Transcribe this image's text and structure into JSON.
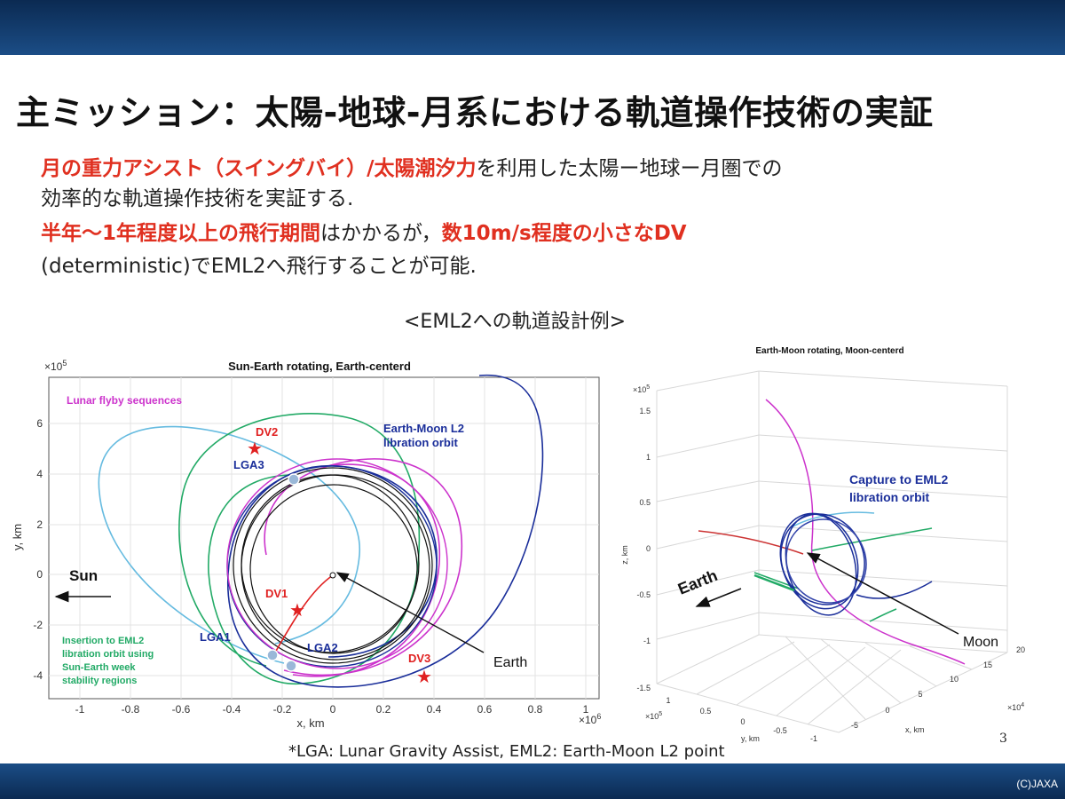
{
  "slide": {
    "title": "主ミッション：太陽-地球-月系における軌道操作技術の実証",
    "para1_hl": "月の重力アシスト（スイングバイ）/太陽潮汐力",
    "para1_rest": "を利用した太陽ー地球ー月圏での",
    "para2": "効率的な軌道操作技術を実証する.",
    "para3_hl1": "半年～1年程度以上の飛行期間",
    "para3_mid": "はかかるが，",
    "para3_hl2": "数10m/s程度の小さなDV",
    "para4": "(deterministic)でEML2へ飛行することが可能.",
    "subheading": "<EML2への軌道設計例>",
    "footnote": "*LGA: Lunar Gravity Assist, EML2: Earth-Moon L2 point",
    "page_number": "3",
    "copyright": "(C)JAXA"
  },
  "left_plot": {
    "title": "Sun-Earth rotating, Earth-centerd",
    "exponent_y": "×10",
    "exponent_y_pow": "5",
    "exponent_x": "×10",
    "exponent_x_pow": "6",
    "xlabel": "x, km",
    "ylabel": "y, km",
    "x_ticks": [
      "-1",
      "-0.8",
      "-0.6",
      "-0.4",
      "-0.2",
      "0",
      "0.2",
      "0.4",
      "0.6",
      "0.8",
      "1"
    ],
    "y_ticks": [
      "6",
      "4",
      "2",
      "0",
      "-2",
      "-4"
    ],
    "labels": {
      "lunar_flyby": "Lunar flyby sequences",
      "eml2_orbit_1": "Earth-Moon L2",
      "eml2_orbit_2": "libration orbit",
      "sun": "Sun",
      "insertion_1": "Insertion to EML2",
      "insertion_2": "libration orbit using",
      "insertion_3": "Sun-Earth week",
      "insertion_4": "stability regions",
      "dv1": "DV1",
      "dv2": "DV2",
      "dv3": "DV3",
      "lga1": "LGA1",
      "lga2": "LGA2",
      "lga3": "LGA3",
      "earth": "Earth"
    },
    "colors": {
      "lunar_flyby": "#cc33cc",
      "eml2": "#1a2e9a",
      "dv": "#e02020",
      "sky": "#66bbe0",
      "green": "#22aa66",
      "magenta": "#cc33cc",
      "black": "#111111"
    }
  },
  "right_plot": {
    "title": "Earth-Moon rotating, Moon-centerd",
    "exponent_z": "×10",
    "exponent_z_pow": "5",
    "exponent_x": "×10",
    "exponent_x_pow": "4",
    "exponent_y": "×10",
    "exponent_y_pow": "5",
    "zlabel": "z, km",
    "ylabel": "y, km",
    "xlabel": "x, km",
    "z_ticks": [
      "1.5",
      "1",
      "0.5",
      "0",
      "-0.5",
      "-1",
      "-1.5"
    ],
    "y_ticks": [
      "1",
      "0.5",
      "0",
      "-0.5",
      "-1"
    ],
    "x_ticks": [
      "-5",
      "0",
      "5",
      "10",
      "15",
      "20"
    ],
    "labels": {
      "capture_1": "Capture to EML2",
      "capture_2": "libration orbit",
      "earth": "Earth",
      "moon": "Moon"
    }
  }
}
